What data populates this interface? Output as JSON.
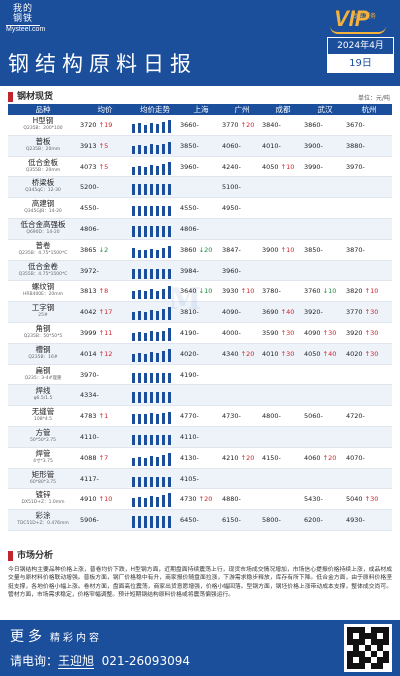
{
  "header": {
    "logo_line1": "我的",
    "logo_line2": "钢铁",
    "logo_sub": "Mysteel.com",
    "vip_text": "VIP",
    "vip_sub": "专属服务",
    "title": "钢结构原料日报",
    "date_month": "2024年4月",
    "date_day": "19日"
  },
  "section_spot": {
    "title": "钢材现货",
    "unit": "单位：元/吨"
  },
  "table": {
    "headers": [
      "品种",
      "均价",
      "均价走势",
      "上海",
      "广州",
      "成都",
      "武汉",
      "杭州"
    ],
    "rows": [
      {
        "name": "H型钢",
        "spec": "Q235B：200*100",
        "avg": "3720",
        "avg_chg": "19",
        "avg_dir": "up",
        "trend": [
          0.55,
          0.6,
          0.5,
          0.62,
          0.58,
          0.66,
          0.8
        ],
        "sh": "3660",
        "sh_chg": "",
        "sh_dir": "fl",
        "gz": "3770",
        "gz_chg": "20",
        "gz_dir": "up",
        "cd": "3840",
        "cd_chg": "",
        "cd_dir": "fl",
        "wh": "3860",
        "wh_chg": "",
        "wh_dir": "fl",
        "hz": "3670",
        "hz_chg": "",
        "hz_dir": "fl"
      },
      {
        "name": "普板",
        "spec": "Q235B：20mm",
        "avg": "3913",
        "avg_chg": "5",
        "avg_dir": "up",
        "trend": [
          0.5,
          0.55,
          0.48,
          0.6,
          0.56,
          0.64,
          0.78
        ],
        "sh": "3850",
        "sh_chg": "",
        "sh_dir": "fl",
        "gz": "4060",
        "gz_chg": "",
        "gz_dir": "fl",
        "cd": "4010",
        "cd_chg": "",
        "cd_dir": "fl",
        "wh": "3900",
        "wh_chg": "",
        "wh_dir": "fl",
        "hz": "3880",
        "hz_chg": "",
        "hz_dir": "fl"
      },
      {
        "name": "低合金板",
        "spec": "Q355B：20mm",
        "avg": "4073",
        "avg_chg": "5",
        "avg_dir": "up",
        "trend": [
          0.5,
          0.58,
          0.52,
          0.62,
          0.58,
          0.66,
          0.82
        ],
        "sh": "3960",
        "sh_chg": "",
        "sh_dir": "fl",
        "gz": "4240",
        "gz_chg": "",
        "gz_dir": "fl",
        "cd": "4050",
        "cd_chg": "10",
        "cd_dir": "up",
        "wh": "3990",
        "wh_chg": "",
        "wh_dir": "fl",
        "hz": "3970",
        "hz_chg": "",
        "hz_dir": "fl"
      },
      {
        "name": "桥梁板",
        "spec": "Q345qC：12-30",
        "avg": "5200",
        "avg_chg": "",
        "avg_dir": "fl",
        "trend": [
          0.7,
          0.7,
          0.7,
          0.7,
          0.7,
          0.7,
          0.7
        ],
        "sh": "",
        "sh_chg": "",
        "sh_dir": "fl",
        "gz": "5100",
        "gz_chg": "",
        "gz_dir": "fl",
        "cd": "",
        "cd_chg": "",
        "cd_dir": "fl",
        "wh": "",
        "wh_chg": "",
        "wh_dir": "fl",
        "hz": "",
        "hz_chg": "",
        "hz_dir": "fl"
      },
      {
        "name": "高建钢",
        "spec": "Q345GJB：14-20",
        "avg": "4550",
        "avg_chg": "",
        "avg_dir": "fl",
        "trend": [
          0.65,
          0.65,
          0.65,
          0.65,
          0.65,
          0.65,
          0.65
        ],
        "sh": "4550",
        "sh_chg": "",
        "sh_dir": "fl",
        "gz": "4950",
        "gz_chg": "",
        "gz_dir": "fl",
        "cd": "",
        "cd_chg": "",
        "cd_dir": "fl",
        "wh": "",
        "wh_chg": "",
        "wh_dir": "fl",
        "hz": "",
        "hz_chg": "",
        "hz_dir": "fl"
      },
      {
        "name": "低合金高强板",
        "spec": "Q690D：14-20",
        "avg": "4806",
        "avg_chg": "",
        "avg_dir": "fl",
        "trend": [
          0.68,
          0.68,
          0.68,
          0.68,
          0.68,
          0.68,
          0.68
        ],
        "sh": "4806",
        "sh_chg": "",
        "sh_dir": "fl",
        "gz": "",
        "gz_chg": "",
        "gz_dir": "fl",
        "cd": "",
        "cd_chg": "",
        "cd_dir": "fl",
        "wh": "",
        "wh_chg": "",
        "wh_dir": "fl",
        "hz": "",
        "hz_chg": "",
        "hz_dir": "fl"
      },
      {
        "name": "普卷",
        "spec": "Q235B：4.75*1500*C",
        "avg": "3865",
        "avg_chg": "2",
        "avg_dir": "dn",
        "trend": [
          0.6,
          0.52,
          0.48,
          0.56,
          0.5,
          0.62,
          0.72
        ],
        "sh": "3860",
        "sh_chg": "20",
        "sh_dir": "dn",
        "gz": "3847",
        "gz_chg": "",
        "gz_dir": "fl",
        "cd": "3900",
        "cd_chg": "10",
        "cd_dir": "up",
        "wh": "3850",
        "wh_chg": "",
        "wh_dir": "fl",
        "hz": "3870",
        "hz_chg": "",
        "hz_dir": "fl"
      },
      {
        "name": "低合金卷",
        "spec": "Q355B：4.75*1500*C",
        "avg": "3972",
        "avg_chg": "",
        "avg_dir": "fl",
        "trend": [
          0.62,
          0.62,
          0.62,
          0.62,
          0.62,
          0.62,
          0.62
        ],
        "sh": "3984",
        "sh_chg": "",
        "sh_dir": "fl",
        "gz": "3960",
        "gz_chg": "",
        "gz_dir": "fl",
        "cd": "",
        "cd_chg": "",
        "cd_dir": "fl",
        "wh": "",
        "wh_chg": "",
        "wh_dir": "fl",
        "hz": "",
        "hz_chg": "",
        "hz_dir": "fl"
      },
      {
        "name": "螺纹钢",
        "spec": "HRB400E：20mm",
        "avg": "3813",
        "avg_chg": "8",
        "avg_dir": "up",
        "trend": [
          0.48,
          0.56,
          0.5,
          0.6,
          0.52,
          0.64,
          0.82
        ],
        "sh": "3640",
        "sh_chg": "10",
        "sh_dir": "dn",
        "gz": "3930",
        "gz_chg": "10",
        "gz_dir": "up",
        "cd": "3780",
        "cd_chg": "",
        "cd_dir": "fl",
        "wh": "3760",
        "wh_chg": "10",
        "wh_dir": "dn",
        "hz": "3820",
        "hz_chg": "10",
        "hz_dir": "up"
      },
      {
        "name": "工字钢",
        "spec": "25#",
        "avg": "4042",
        "avg_chg": "17",
        "avg_dir": "up",
        "trend": [
          0.5,
          0.58,
          0.52,
          0.62,
          0.56,
          0.66,
          0.84
        ],
        "sh": "3810",
        "sh_chg": "",
        "sh_dir": "fl",
        "gz": "4090",
        "gz_chg": "",
        "gz_dir": "fl",
        "cd": "3690",
        "cd_chg": "40",
        "cd_dir": "up",
        "wh": "3920",
        "wh_chg": "",
        "wh_dir": "fl",
        "hz": "3770",
        "hz_chg": "30",
        "hz_dir": "up"
      },
      {
        "name": "角钢",
        "spec": "Q235B：50*50*5",
        "avg": "3999",
        "avg_chg": "11",
        "avg_dir": "up",
        "trend": [
          0.5,
          0.56,
          0.5,
          0.6,
          0.54,
          0.64,
          0.8
        ],
        "sh": "4190",
        "sh_chg": "",
        "sh_dir": "fl",
        "gz": "4000",
        "gz_chg": "",
        "gz_dir": "fl",
        "cd": "3590",
        "cd_chg": "30",
        "cd_dir": "up",
        "wh": "4090",
        "wh_chg": "30",
        "wh_dir": "up",
        "hz": "3920",
        "hz_chg": "30",
        "hz_dir": "up"
      },
      {
        "name": "槽钢",
        "spec": "Q235B：16#",
        "avg": "4014",
        "avg_chg": "12",
        "avg_dir": "up",
        "trend": [
          0.5,
          0.58,
          0.52,
          0.62,
          0.56,
          0.66,
          0.82
        ],
        "sh": "4020",
        "sh_chg": "",
        "sh_dir": "fl",
        "gz": "4340",
        "gz_chg": "20",
        "gz_dir": "up",
        "cd": "4010",
        "cd_chg": "30",
        "cd_dir": "up",
        "wh": "4050",
        "wh_chg": "40",
        "wh_dir": "up",
        "hz": "4020",
        "hz_chg": "30",
        "hz_dir": "up"
      },
      {
        "name": "扁钢",
        "spec": "Q235：3-4#理重",
        "avg": "3970",
        "avg_chg": "",
        "avg_dir": "fl",
        "trend": [
          0.62,
          0.62,
          0.62,
          0.62,
          0.62,
          0.62,
          0.62
        ],
        "sh": "4190",
        "sh_chg": "",
        "sh_dir": "fl",
        "gz": "",
        "gz_chg": "",
        "gz_dir": "fl",
        "cd": "",
        "cd_chg": "",
        "cd_dir": "fl",
        "wh": "",
        "wh_chg": "",
        "wh_dir": "fl",
        "hz": "",
        "hz_chg": "",
        "hz_dir": "fl"
      },
      {
        "name": "焊线",
        "spec": "φ6.5/1.5",
        "avg": "4334",
        "avg_chg": "",
        "avg_dir": "fl",
        "trend": [
          0.66,
          0.66,
          0.66,
          0.66,
          0.66,
          0.66,
          0.66
        ],
        "sh": "",
        "sh_chg": "",
        "sh_dir": "fl",
        "gz": "",
        "gz_chg": "",
        "gz_dir": "fl",
        "cd": "",
        "cd_chg": "",
        "cd_dir": "fl",
        "wh": "",
        "wh_chg": "",
        "wh_dir": "fl",
        "hz": "",
        "hz_chg": "",
        "hz_dir": "fl"
      },
      {
        "name": "无缝管",
        "spec": "108*4.5",
        "avg": "4783",
        "avg_chg": "1",
        "avg_dir": "up",
        "trend": [
          0.6,
          0.64,
          0.6,
          0.66,
          0.62,
          0.68,
          0.76
        ],
        "sh": "4770",
        "sh_chg": "",
        "sh_dir": "fl",
        "gz": "4730",
        "gz_chg": "",
        "gz_dir": "fl",
        "cd": "4800",
        "cd_chg": "",
        "cd_dir": "fl",
        "wh": "5060",
        "wh_chg": "",
        "wh_dir": "fl",
        "hz": "4720",
        "hz_chg": "",
        "hz_dir": "fl"
      },
      {
        "name": "方管",
        "spec": "50*50*2.75",
        "avg": "4110",
        "avg_chg": "",
        "avg_dir": "fl",
        "trend": [
          0.63,
          0.63,
          0.63,
          0.63,
          0.63,
          0.63,
          0.63
        ],
        "sh": "4110",
        "sh_chg": "",
        "sh_dir": "fl",
        "gz": "",
        "gz_chg": "",
        "gz_dir": "fl",
        "cd": "",
        "cd_chg": "",
        "cd_dir": "fl",
        "wh": "",
        "wh_chg": "",
        "wh_dir": "fl",
        "hz": "",
        "hz_chg": "",
        "hz_dir": "fl"
      },
      {
        "name": "焊管",
        "spec": "4寸*3.75",
        "avg": "4088",
        "avg_chg": "7",
        "avg_dir": "up",
        "trend": [
          0.52,
          0.58,
          0.52,
          0.62,
          0.56,
          0.66,
          0.8
        ],
        "sh": "4130",
        "sh_chg": "",
        "sh_dir": "fl",
        "gz": "4210",
        "gz_chg": "20",
        "gz_dir": "up",
        "cd": "4150",
        "cd_chg": "",
        "cd_dir": "fl",
        "wh": "4060",
        "wh_chg": "20",
        "wh_dir": "up",
        "hz": "4070",
        "hz_chg": "",
        "hz_dir": "fl"
      },
      {
        "name": "矩形管",
        "spec": "60*80*3.75",
        "avg": "4117",
        "avg_chg": "",
        "avg_dir": "fl",
        "trend": [
          0.63,
          0.63,
          0.63,
          0.63,
          0.63,
          0.63,
          0.63
        ],
        "sh": "4105",
        "sh_chg": "",
        "sh_dir": "fl",
        "gz": "",
        "gz_chg": "",
        "gz_dir": "fl",
        "cd": "",
        "cd_chg": "",
        "cd_dir": "fl",
        "wh": "",
        "wh_chg": "",
        "wh_dir": "fl",
        "hz": "",
        "hz_chg": "",
        "hz_dir": "fl"
      },
      {
        "name": "镀锌",
        "spec": "DX51D+Z：1.0mm",
        "avg": "4910",
        "avg_chg": "10",
        "avg_dir": "up",
        "trend": [
          0.58,
          0.64,
          0.58,
          0.68,
          0.62,
          0.72,
          0.86
        ],
        "sh": "4730",
        "sh_chg": "20",
        "sh_dir": "up",
        "gz": "4880",
        "gz_chg": "",
        "gz_dir": "fl",
        "cd": "",
        "cd_chg": "",
        "cd_dir": "fl",
        "wh": "5430",
        "wh_chg": "",
        "wh_dir": "fl",
        "hz": "5040",
        "hz_chg": "30",
        "hz_dir": "up"
      },
      {
        "name": "彩涂",
        "spec": "TDC51D+Z：0.476mm",
        "avg": "5906",
        "avg_chg": "",
        "avg_dir": "fl",
        "trend": [
          0.75,
          0.75,
          0.75,
          0.75,
          0.75,
          0.75,
          0.75
        ],
        "sh": "6450",
        "sh_chg": "",
        "sh_dir": "fl",
        "gz": "6150",
        "gz_chg": "",
        "gz_dir": "fl",
        "cd": "5800",
        "cd_chg": "",
        "cd_dir": "fl",
        "wh": "6200",
        "wh_chg": "",
        "wh_dir": "fl",
        "hz": "4930",
        "hz_chg": "",
        "hz_dir": "fl"
      }
    ]
  },
  "section_analysis": {
    "title": "市场分析",
    "text": "今日钢结构主要品种价格上涨，普卷均价下跌，H型钢方面，近期盘面持续震荡上行，现货市场成交情况增加，市场信心提振价格持续上涨，成品材成交量与原材料价格联动增强。普板方面，钢厂价格稳中有升，商家报价随盘面拉涨，下游需求稳步释放，库存有所下降。低合金方面，由于原料价格坚挺支撑，各地价格小幅上涨。卷材方面，盘面高位震荡，商家出货意愿增强，价格小幅回落。型钢方面，钢坯价格上涨带动成本支撑，整体成交尚可。管材方面，市场需求稳定，价格窄幅调整。预计短期钢结构原料价格或将震荡偏强运行。"
  },
  "footer": {
    "more_big": "更多",
    "more_small": "精彩内容",
    "contact_label": "请电询：",
    "contact_name": "王迎旭",
    "contact_phone": "021-26093094"
  },
  "colors": {
    "brand": "#1b4f9c",
    "up": "#d0232a",
    "down": "#1a8a3c",
    "accent": "#f4b23a"
  }
}
